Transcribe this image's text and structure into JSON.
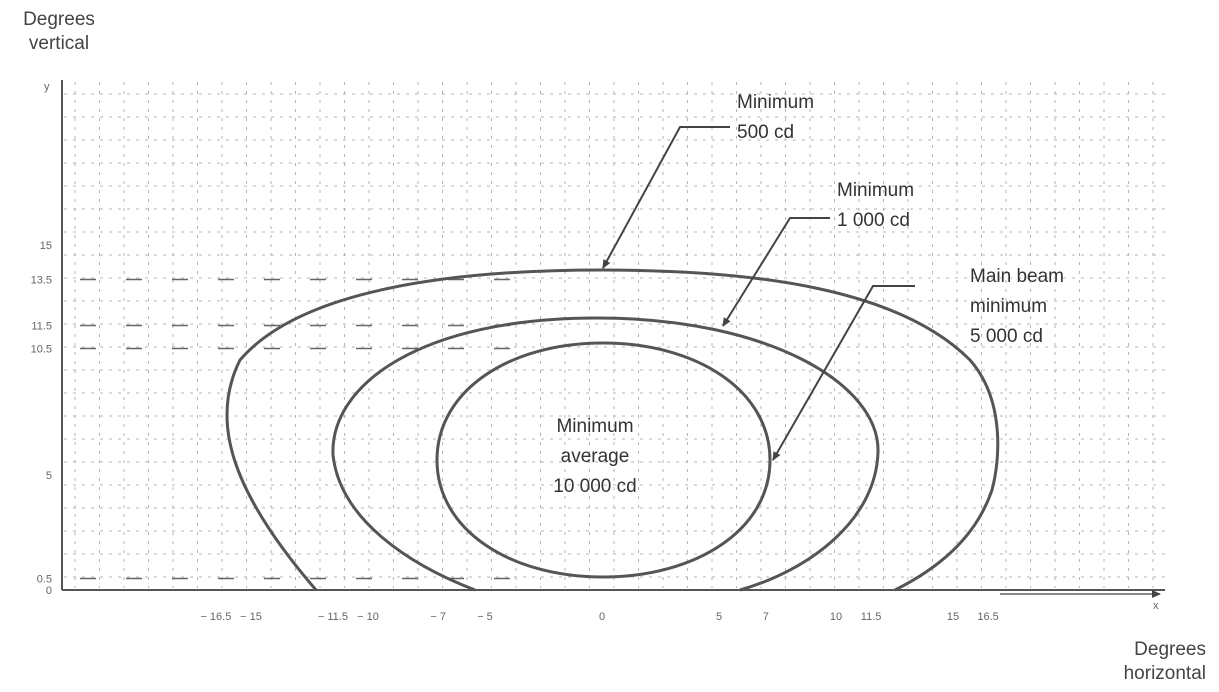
{
  "y_axis_title": [
    "Degrees",
    "vertical"
  ],
  "x_axis_title": [
    "Degrees",
    "horizontal"
  ],
  "x_ticks": [
    "− 16.5",
    "− 15",
    "− 11.5",
    "− 10",
    "− 7",
    "− 5",
    "0",
    "5",
    "7",
    "10",
    "11.5",
    "15",
    "16.5"
  ],
  "x_tick_values": [
    -16.5,
    -15,
    -11.5,
    -10,
    -7,
    -5,
    0,
    5,
    7,
    10,
    11.5,
    15,
    16.5
  ],
  "y_ticks": [
    "0",
    "0.5",
    "5",
    "10.5",
    "11.5",
    "13.5",
    "15"
  ],
  "y_tick_values": [
    0,
    0.5,
    5,
    10.5,
    11.5,
    13.5,
    15
  ],
  "y_top_tick": "y",
  "x_end_tick": "x",
  "contours": [
    {
      "label": [
        "Minimum",
        "500 cd"
      ],
      "h_half_extent": 16.5,
      "v_top": 13.5,
      "v_bottom": 0
    },
    {
      "label": [
        "Minimum",
        "1 000 cd"
      ],
      "h_half_extent": 11.5,
      "v_top": 11.5,
      "v_bottom": 0
    },
    {
      "label": [
        "Main beam",
        "minimum",
        "5 000 cd"
      ],
      "h_half_extent": 7,
      "v_top": 10.5,
      "v_bottom": 0.5
    }
  ],
  "center_label": [
    "Minimum",
    "average",
    "10 000 cd"
  ],
  "colors": {
    "curve": "#555555",
    "grid": "#b5b5b5",
    "text": "#333333",
    "dashed_ref": "#666666"
  }
}
